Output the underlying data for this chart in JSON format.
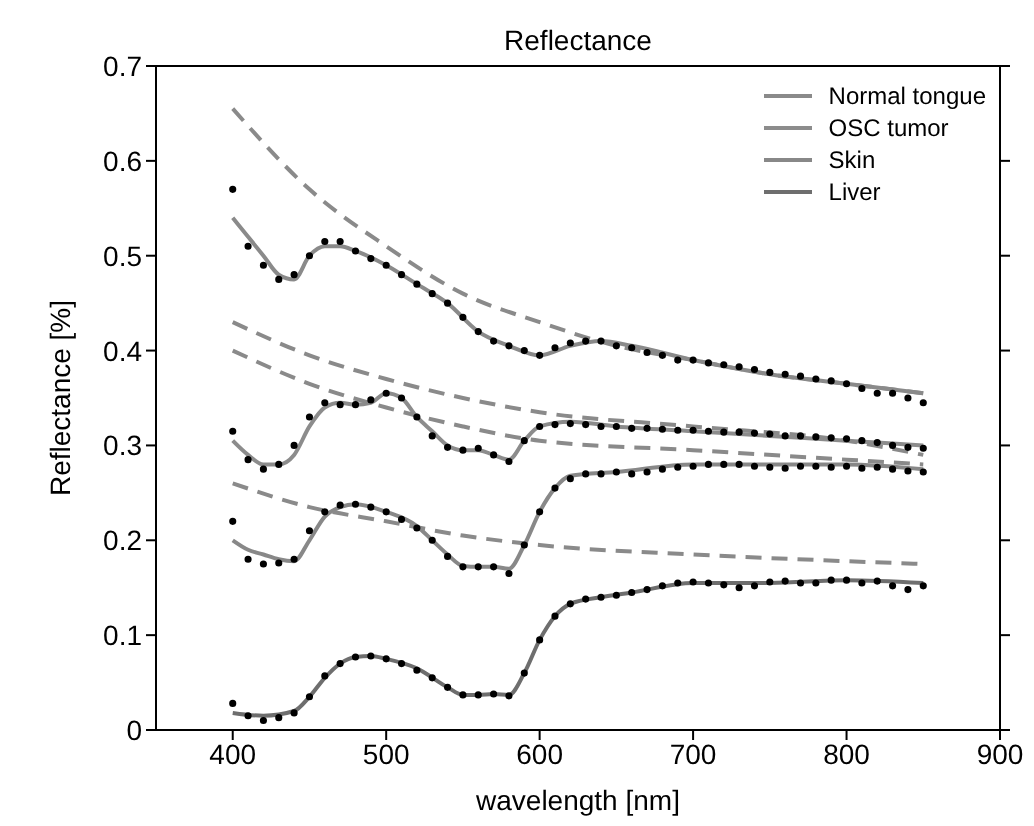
{
  "chart_data": {
    "type": "line",
    "title": "Reflectance",
    "xlabel": "wavelength [nm]",
    "ylabel": "Reflectance [%]",
    "xlim": [
      350,
      900
    ],
    "xticks": [
      400,
      500,
      600,
      700,
      800,
      900
    ],
    "ylim": [
      0,
      0.7
    ],
    "yticks": [
      0,
      0.1,
      0.2,
      0.3,
      0.4,
      0.5,
      0.6,
      0.7
    ],
    "legend": "top right",
    "x": [
      400,
      410,
      420,
      430,
      440,
      450,
      460,
      470,
      480,
      490,
      500,
      510,
      520,
      530,
      540,
      550,
      560,
      570,
      580,
      590,
      600,
      610,
      620,
      630,
      640,
      650,
      660,
      670,
      680,
      690,
      700,
      710,
      720,
      730,
      740,
      750,
      760,
      770,
      780,
      790,
      800,
      810,
      820,
      830,
      840,
      850
    ],
    "series": [
      {
        "type": "line",
        "name": "Normal tongue",
        "color": "#8a8a8a",
        "line_style": "solid",
        "x": [
          400,
          410,
          420,
          430,
          440,
          450,
          460,
          470,
          480,
          500,
          520,
          540,
          560,
          580,
          600,
          620,
          640,
          660,
          700,
          750,
          800,
          850
        ],
        "values": [
          0.54,
          0.52,
          0.5,
          0.48,
          0.475,
          0.5,
          0.51,
          0.51,
          0.505,
          0.49,
          0.47,
          0.45,
          0.42,
          0.405,
          0.395,
          0.405,
          0.41,
          0.405,
          0.39,
          0.375,
          0.365,
          0.355
        ]
      },
      {
        "type": "line",
        "name": "OSC tumor",
        "color": "#8c8c8c",
        "line_style": "solid",
        "x": [
          400,
          410,
          420,
          430,
          440,
          450,
          460,
          470,
          480,
          490,
          500,
          510,
          520,
          530,
          540,
          550,
          560,
          570,
          580,
          590,
          600,
          620,
          650,
          700,
          750,
          800,
          850
        ],
        "values": [
          0.305,
          0.29,
          0.28,
          0.28,
          0.29,
          0.32,
          0.34,
          0.345,
          0.343,
          0.345,
          0.355,
          0.35,
          0.33,
          0.315,
          0.3,
          0.295,
          0.295,
          0.29,
          0.285,
          0.305,
          0.32,
          0.325,
          0.32,
          0.315,
          0.31,
          0.305,
          0.3
        ]
      },
      {
        "type": "line",
        "name": "Skin",
        "color": "#888888",
        "line_style": "solid",
        "x": [
          400,
          410,
          420,
          430,
          440,
          450,
          460,
          470,
          480,
          500,
          520,
          530,
          540,
          550,
          560,
          570,
          580,
          590,
          600,
          610,
          620,
          650,
          700,
          750,
          800,
          850
        ],
        "values": [
          0.2,
          0.19,
          0.185,
          0.18,
          0.178,
          0.2,
          0.225,
          0.235,
          0.238,
          0.23,
          0.215,
          0.2,
          0.185,
          0.173,
          0.172,
          0.172,
          0.17,
          0.195,
          0.23,
          0.255,
          0.268,
          0.272,
          0.28,
          0.28,
          0.28,
          0.275
        ]
      },
      {
        "type": "line",
        "name": "Liver",
        "color": "#6e6e6e",
        "line_style": "solid",
        "x": [
          400,
          420,
          440,
          450,
          460,
          470,
          480,
          490,
          500,
          520,
          540,
          550,
          560,
          570,
          580,
          590,
          600,
          610,
          620,
          640,
          660,
          700,
          750,
          800,
          850
        ],
        "values": [
          0.018,
          0.015,
          0.02,
          0.035,
          0.055,
          0.07,
          0.077,
          0.078,
          0.075,
          0.065,
          0.045,
          0.037,
          0.037,
          0.038,
          0.037,
          0.06,
          0.095,
          0.12,
          0.133,
          0.14,
          0.145,
          0.155,
          0.155,
          0.158,
          0.155
        ]
      },
      {
        "type": "line",
        "color": "#8a8a8a",
        "line_style": "dashed",
        "x": [
          400,
          450,
          500,
          550,
          600,
          650,
          700,
          750,
          800,
          850
        ],
        "values": [
          0.655,
          0.57,
          0.51,
          0.46,
          0.43,
          0.405,
          0.39,
          0.375,
          0.365,
          0.355
        ]
      },
      {
        "type": "line",
        "color": "#8a8a8a",
        "line_style": "dashed",
        "x": [
          400,
          450,
          500,
          550,
          600,
          700,
          800,
          850
        ],
        "values": [
          0.43,
          0.395,
          0.37,
          0.35,
          0.335,
          0.32,
          0.305,
          0.29
        ]
      },
      {
        "type": "line",
        "color": "#8a8a8a",
        "line_style": "dashed",
        "x": [
          400,
          450,
          500,
          550,
          600,
          700,
          800,
          850
        ],
        "values": [
          0.4,
          0.365,
          0.34,
          0.32,
          0.305,
          0.295,
          0.285,
          0.28
        ]
      },
      {
        "type": "line",
        "color": "#8a8a8a",
        "line_style": "dashed",
        "x": [
          400,
          450,
          500,
          550,
          600,
          700,
          800,
          850
        ],
        "values": [
          0.26,
          0.235,
          0.22,
          0.205,
          0.195,
          0.185,
          0.178,
          0.175
        ]
      },
      {
        "type": "scatter",
        "color": "#000000",
        "marker": "circle",
        "values": [
          0.57,
          0.51,
          0.49,
          0.475,
          0.48,
          0.5,
          0.515,
          0.515,
          0.505,
          0.497,
          0.49,
          0.48,
          0.47,
          0.46,
          0.45,
          0.435,
          0.42,
          0.41,
          0.405,
          0.4,
          0.395,
          0.403,
          0.408,
          0.41,
          0.41,
          0.405,
          0.403,
          0.398,
          0.395,
          0.39,
          0.39,
          0.387,
          0.385,
          0.383,
          0.38,
          0.377,
          0.375,
          0.373,
          0.37,
          0.368,
          0.365,
          0.36,
          0.355,
          0.355,
          0.35,
          0.345
        ]
      },
      {
        "type": "scatter",
        "color": "#000000",
        "marker": "circle",
        "values": [
          0.315,
          0.285,
          0.275,
          0.28,
          0.3,
          0.33,
          0.345,
          0.343,
          0.343,
          0.348,
          0.355,
          0.35,
          0.33,
          0.31,
          0.298,
          0.295,
          0.297,
          0.29,
          0.283,
          0.305,
          0.32,
          0.322,
          0.323,
          0.322,
          0.32,
          0.32,
          0.318,
          0.318,
          0.317,
          0.316,
          0.316,
          0.315,
          0.314,
          0.314,
          0.313,
          0.312,
          0.31,
          0.31,
          0.309,
          0.308,
          0.307,
          0.305,
          0.303,
          0.3,
          0.298,
          0.297
        ]
      },
      {
        "type": "scatter",
        "color": "#000000",
        "marker": "circle",
        "values": [
          0.22,
          0.18,
          0.175,
          0.176,
          0.18,
          0.21,
          0.23,
          0.237,
          0.238,
          0.235,
          0.23,
          0.222,
          0.213,
          0.2,
          0.183,
          0.172,
          0.172,
          0.172,
          0.165,
          0.195,
          0.23,
          0.255,
          0.265,
          0.27,
          0.27,
          0.272,
          0.27,
          0.272,
          0.275,
          0.277,
          0.278,
          0.28,
          0.28,
          0.28,
          0.278,
          0.277,
          0.276,
          0.278,
          0.278,
          0.277,
          0.278,
          0.276,
          0.277,
          0.275,
          0.273,
          0.272
        ]
      },
      {
        "type": "scatter",
        "color": "#000000",
        "marker": "circle",
        "values": [
          0.028,
          0.015,
          0.01,
          0.013,
          0.018,
          0.035,
          0.057,
          0.07,
          0.077,
          0.078,
          0.075,
          0.07,
          0.063,
          0.055,
          0.045,
          0.037,
          0.037,
          0.038,
          0.036,
          0.06,
          0.095,
          0.12,
          0.133,
          0.138,
          0.14,
          0.142,
          0.145,
          0.148,
          0.152,
          0.155,
          0.156,
          0.155,
          0.153,
          0.15,
          0.152,
          0.156,
          0.157,
          0.155,
          0.155,
          0.158,
          0.158,
          0.155,
          0.157,
          0.152,
          0.148,
          0.152
        ]
      }
    ]
  }
}
